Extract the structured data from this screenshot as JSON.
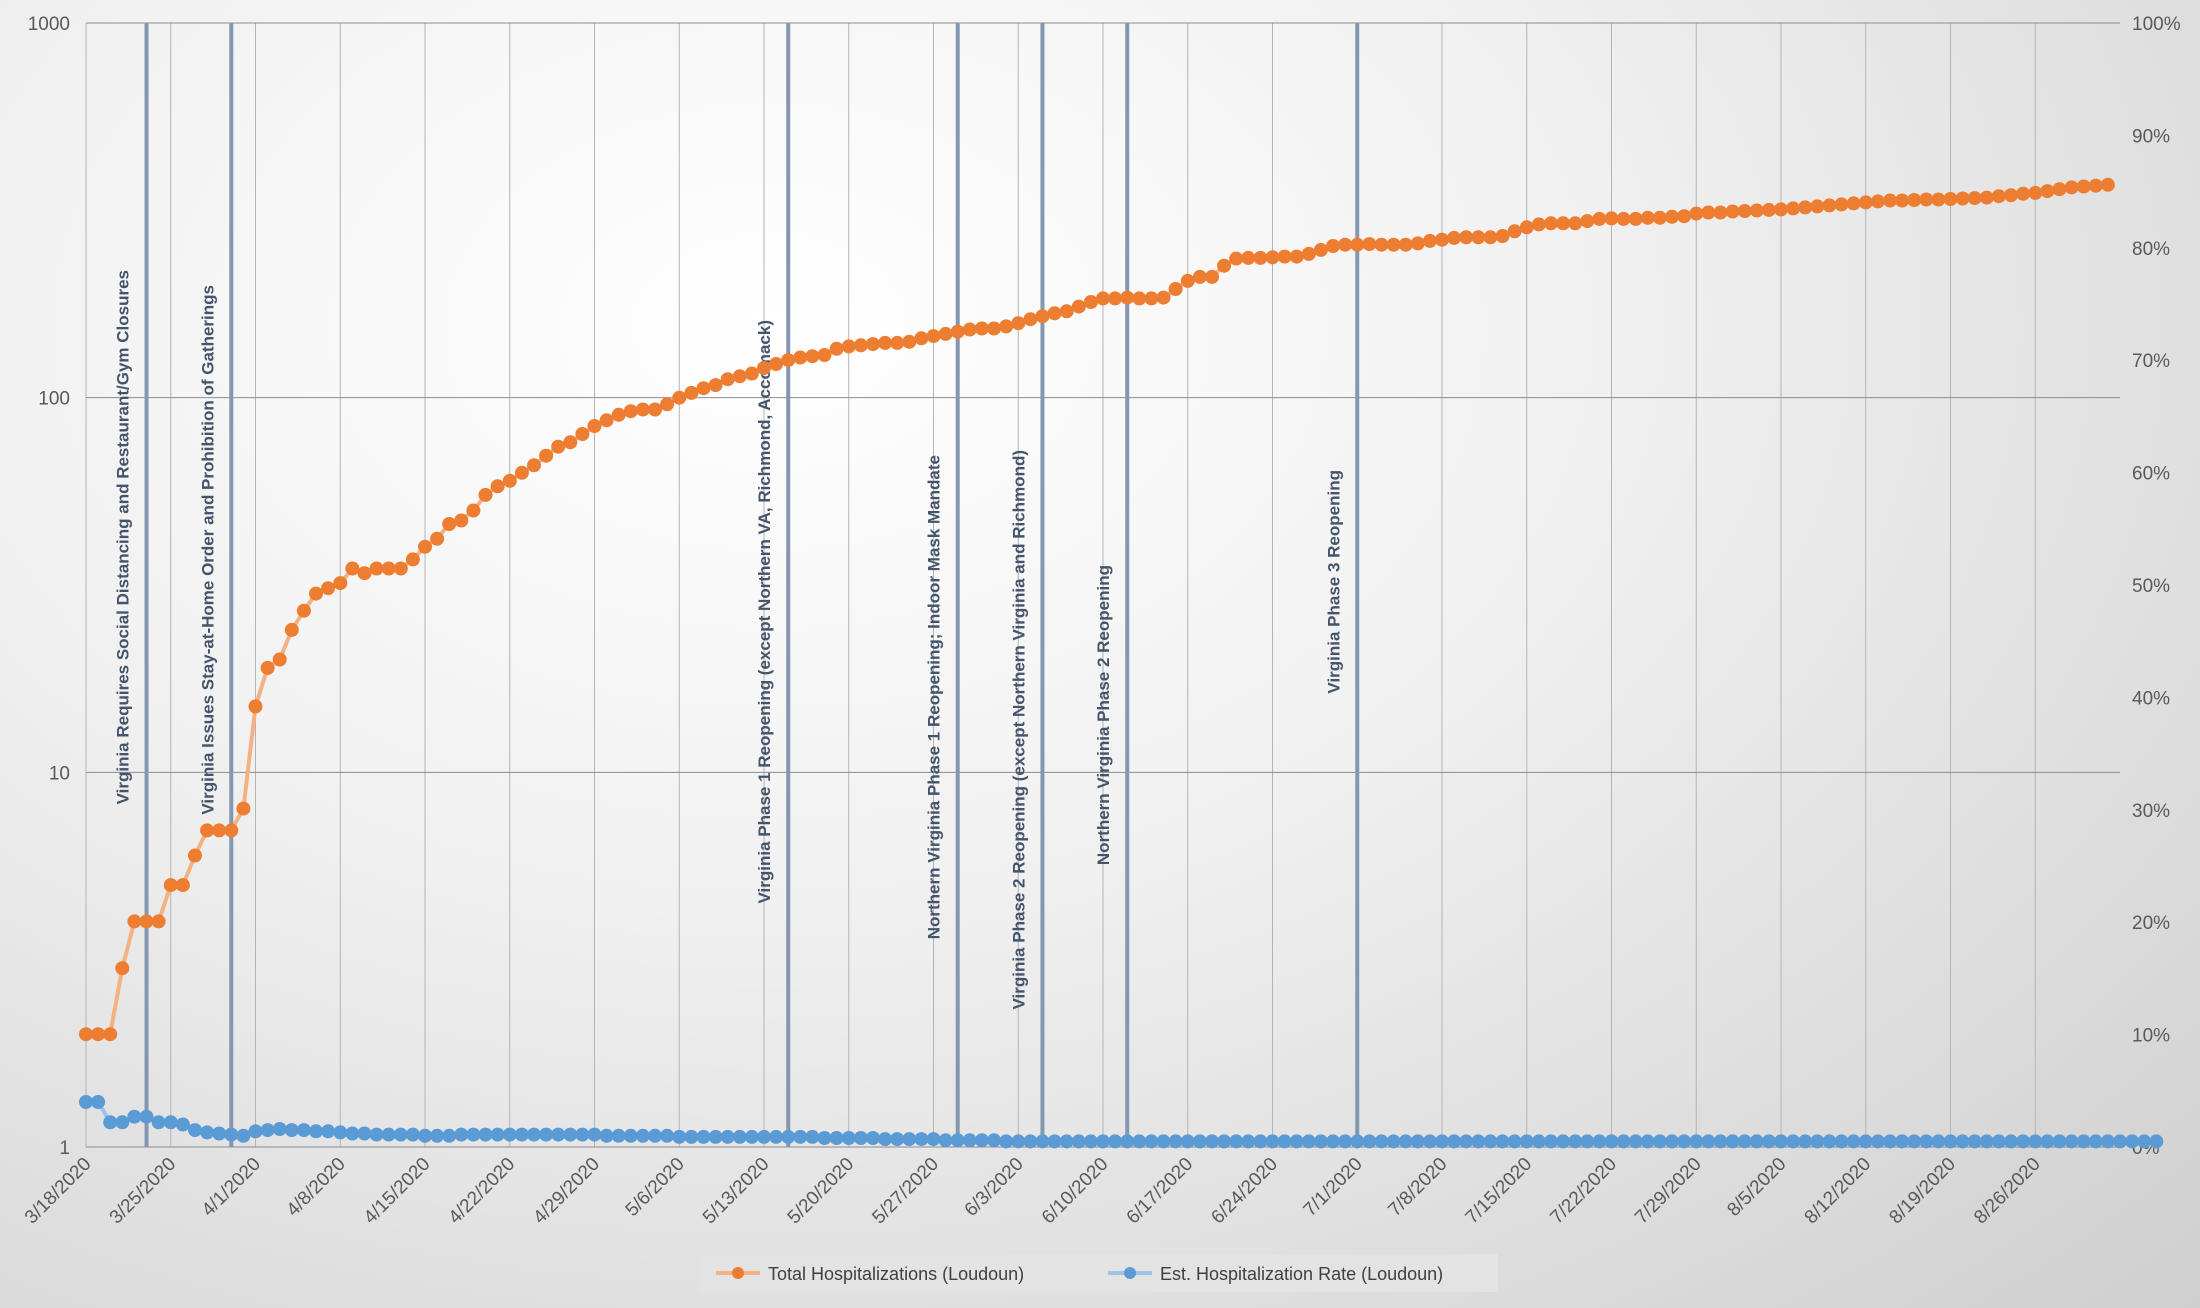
{
  "chart_data": {
    "type": "line",
    "y_left": {
      "scale": "log",
      "ticks": [
        1,
        10,
        100,
        1000
      ],
      "range": [
        1,
        1000
      ]
    },
    "y_right": {
      "scale": "linear",
      "ticks": [
        "0%",
        "10%",
        "20%",
        "30%",
        "40%",
        "50%",
        "60%",
        "70%",
        "80%",
        "90%",
        "100%"
      ],
      "range": [
        0,
        1
      ]
    },
    "x_range": [
      "3/18/2020",
      "9/2/2020"
    ],
    "x_tick_labels": [
      "3/18/2020",
      "3/25/2020",
      "4/1/2020",
      "4/8/2020",
      "4/15/2020",
      "4/22/2020",
      "4/29/2020",
      "5/6/2020",
      "5/13/2020",
      "5/20/2020",
      "5/27/2020",
      "6/3/2020",
      "6/10/2020",
      "6/17/2020",
      "6/24/2020",
      "7/1/2020",
      "7/8/2020",
      "7/15/2020",
      "7/22/2020",
      "7/29/2020",
      "8/5/2020",
      "8/12/2020",
      "8/19/2020",
      "8/26/2020"
    ],
    "grid": true,
    "legend_position": "bottom",
    "series": [
      {
        "name": "Total Hospitalizations (Loudoun)",
        "axis": "left",
        "color": "#ed7d31",
        "values": [
          2,
          2,
          2,
          3,
          4,
          4,
          4,
          5,
          5,
          6,
          7,
          7,
          7,
          8,
          15,
          19,
          20,
          24,
          27,
          30,
          31,
          32,
          35,
          34,
          35,
          35,
          35,
          37,
          40,
          42,
          46,
          47,
          50,
          55,
          58,
          60,
          63,
          66,
          70,
          74,
          76,
          80,
          84,
          87,
          90,
          92,
          93,
          93,
          96,
          100,
          103,
          106,
          108,
          112,
          114,
          116,
          120,
          123,
          126,
          128,
          129,
          130,
          135,
          137,
          138,
          139,
          140,
          140,
          141,
          144,
          146,
          148,
          150,
          152,
          153,
          153,
          155,
          158,
          162,
          165,
          168,
          170,
          175,
          180,
          184,
          184,
          185,
          184,
          184,
          185,
          195,
          205,
          210,
          210,
          225,
          235,
          236,
          236,
          237,
          238,
          238,
          242,
          248,
          254,
          256,
          256,
          257,
          256,
          256,
          256,
          258,
          262,
          264,
          267,
          268,
          268,
          268,
          270,
          278,
          285,
          290,
          292,
          292,
          292,
          296,
          300,
          301,
          300,
          300,
          302,
          302,
          304,
          305,
          310,
          312,
          312,
          314,
          315,
          316,
          317,
          318,
          320,
          322,
          324,
          326,
          328,
          330,
          332,
          334,
          336,
          336,
          337,
          338,
          338,
          339,
          340,
          341,
          342,
          345,
          347,
          350,
          352,
          356,
          360,
          364,
          366,
          368,
          370
        ]
      },
      {
        "name": "Est. Hospitalization Rate (Loudoun)",
        "axis": "right",
        "color": "#5b9bd5",
        "values": [
          0.04,
          0.04,
          0.022,
          0.022,
          0.027,
          0.027,
          0.022,
          0.022,
          0.02,
          0.015,
          0.013,
          0.012,
          0.011,
          0.01,
          0.014,
          0.015,
          0.016,
          0.015,
          0.015,
          0.014,
          0.014,
          0.013,
          0.012,
          0.012,
          0.011,
          0.011,
          0.011,
          0.011,
          0.01,
          0.01,
          0.01,
          0.011,
          0.011,
          0.011,
          0.011,
          0.011,
          0.011,
          0.011,
          0.011,
          0.011,
          0.011,
          0.011,
          0.011,
          0.01,
          0.01,
          0.01,
          0.01,
          0.01,
          0.01,
          0.009,
          0.009,
          0.009,
          0.009,
          0.009,
          0.009,
          0.009,
          0.009,
          0.009,
          0.009,
          0.009,
          0.009,
          0.008,
          0.008,
          0.008,
          0.008,
          0.008,
          0.007,
          0.007,
          0.007,
          0.007,
          0.007,
          0.006,
          0.006,
          0.006,
          0.006,
          0.006,
          0.005,
          0.005,
          0.005,
          0.005,
          0.005,
          0.005,
          0.005,
          0.005,
          0.005,
          0.005,
          0.005,
          0.005,
          0.005,
          0.005,
          0.005,
          0.005,
          0.005,
          0.005,
          0.005,
          0.005,
          0.005,
          0.005,
          0.005,
          0.005,
          0.005,
          0.005,
          0.005,
          0.005,
          0.005,
          0.005,
          0.005,
          0.005,
          0.005,
          0.005,
          0.005,
          0.005,
          0.005,
          0.005,
          0.005,
          0.005,
          0.005,
          0.005,
          0.005,
          0.005,
          0.005,
          0.005,
          0.005,
          0.005,
          0.005,
          0.005,
          0.005,
          0.005,
          0.005,
          0.005,
          0.005,
          0.005,
          0.005,
          0.005,
          0.005,
          0.005,
          0.005,
          0.005,
          0.005,
          0.005,
          0.005,
          0.005,
          0.005,
          0.005,
          0.005,
          0.005,
          0.005,
          0.005,
          0.005,
          0.005,
          0.005,
          0.005,
          0.005,
          0.005,
          0.005,
          0.005,
          0.005,
          0.005,
          0.005,
          0.005,
          0.005,
          0.005,
          0.005,
          0.005,
          0.005,
          0.005,
          0.005,
          0.005,
          0.005,
          0.005,
          0.005,
          0.005
        ]
      }
    ],
    "events": [
      {
        "date": "3/23/2020",
        "label": "Virginia Requires Social Distancing and Restaurant/Gym Closures"
      },
      {
        "date": "3/30/2020",
        "label": "Virginia Issues Stay-at-Home Order and Prohibition of Gatherings"
      },
      {
        "date": "5/15/2020",
        "label": "Virginia Phase 1 Reopening (except Northern VA, Richmond, Accomack)"
      },
      {
        "date": "5/29/2020",
        "label": "Northern Virginia Phase 1 Reopening; Indoor Mask Mandate"
      },
      {
        "date": "6/5/2020",
        "label": "Virginia Phase 2 Reopening (except Northern Virginia and Richmond)"
      },
      {
        "date": "6/12/2020",
        "label": "Northern Virginia Phase 2 Reopening"
      },
      {
        "date": "7/1/2020",
        "label": "Virginia Phase 3 Reopening"
      }
    ]
  }
}
